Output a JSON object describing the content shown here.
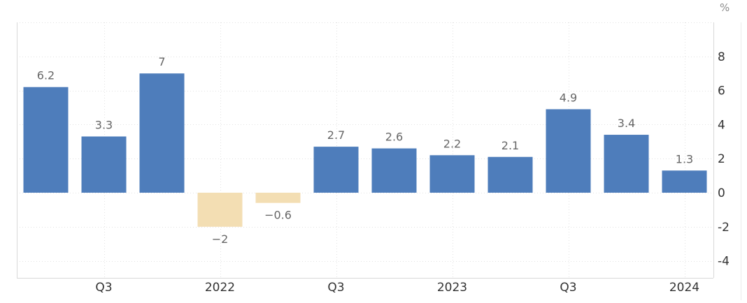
{
  "chart": {
    "unit_label": "%",
    "colors": {
      "positive_bar": "#4e7dbb",
      "negative_bar": "#f3deb3",
      "gridline": "#e2e2e2",
      "plot_border": "#d9d9d9",
      "outer_frame_line": "#ececec",
      "value_label": "#666666",
      "axis_label": "#333333",
      "unit_label": "#8c8c8c",
      "background": "#ffffff"
    }
  },
  "chart_data": {
    "type": "bar",
    "title": "",
    "xlabel": "",
    "ylabel": "%",
    "categories": [
      "",
      "Q3",
      "",
      "2022",
      "",
      "Q3",
      "",
      "2023",
      "",
      "Q3",
      "",
      "2024"
    ],
    "values": [
      6.2,
      3.3,
      7,
      -2,
      -0.6,
      2.7,
      2.6,
      2.2,
      2.1,
      4.9,
      3.4,
      1.3
    ],
    "bar_labels": [
      "6.2",
      "3.3",
      "7",
      "−2",
      "−0.6",
      "2.7",
      "2.6",
      "2.2",
      "2.1",
      "4.9",
      "3.4",
      "1.3"
    ],
    "y_ticks": [
      8,
      6,
      4,
      2,
      0,
      -2,
      -4
    ],
    "ylim": [
      -5,
      10
    ],
    "grid": true,
    "legend": false
  }
}
